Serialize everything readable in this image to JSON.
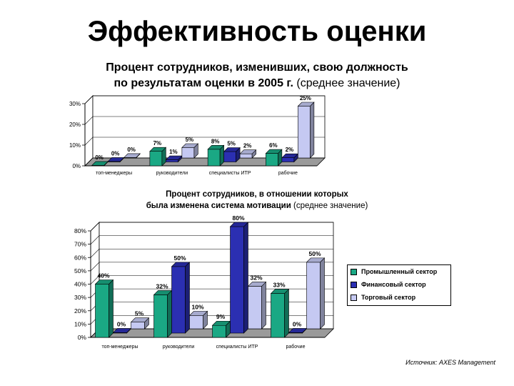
{
  "title": "Эффективность оценки",
  "subtitle1": {
    "line1": "Процент сотрудников, изменивших, свою должность",
    "line2_bold": "по результатам оценки в 2005 г.",
    "line2_plain": " (среднее значение)"
  },
  "subtitle2": {
    "line1": "Процент сотрудников, в отношении которых",
    "line2_bold": "была изменена система мотивации",
    "line2_plain": " (среднее значение)"
  },
  "source": "Источник: AXES Management",
  "colors": {
    "industrial": "#1aa884",
    "financial": "#2b2fb2",
    "trade": "#c5c9f2"
  },
  "chart_data": [
    {
      "type": "bar",
      "categories": [
        "топ-менеджеры",
        "руководители",
        "специалисты ИТР",
        "рабочие"
      ],
      "series": [
        {
          "values": [
            0,
            7,
            8,
            6
          ],
          "labels": [
            "0%",
            "7%",
            "8%",
            "6%"
          ]
        },
        {
          "values": [
            0,
            1,
            5,
            2
          ],
          "labels": [
            "0%",
            "1%",
            "5%",
            "2%"
          ]
        },
        {
          "values": [
            0,
            5,
            2,
            25
          ],
          "labels": [
            "0%",
            "5%",
            "2%",
            "25%"
          ]
        }
      ],
      "yticks": [
        "0%",
        "10%",
        "20%",
        "30%"
      ],
      "ylim": [
        0,
        30
      ],
      "legend": false
    },
    {
      "type": "bar",
      "categories": [
        "топ-менеджеры",
        "руководители",
        "специалисты ИТР",
        "рабочие"
      ],
      "series": [
        {
          "name": "Промышленный сектор",
          "values": [
            40,
            32,
            9,
            33
          ],
          "labels": [
            "40%",
            "32%",
            "9%",
            "33%"
          ]
        },
        {
          "name": "Финансовый сектор",
          "values": [
            0,
            50,
            80,
            0
          ],
          "labels": [
            "0%",
            "50%",
            "80%",
            "0%"
          ]
        },
        {
          "name": "Торговый сектор",
          "values": [
            5,
            10,
            32,
            50
          ],
          "labels": [
            "5%",
            "10%",
            "32%",
            "50%"
          ]
        }
      ],
      "yticks": [
        "0%",
        "10%",
        "20%",
        "30%",
        "40%",
        "50%",
        "60%",
        "70%",
        "80%"
      ],
      "ylim": [
        0,
        80
      ],
      "legend": true,
      "legend_position": "right"
    }
  ]
}
